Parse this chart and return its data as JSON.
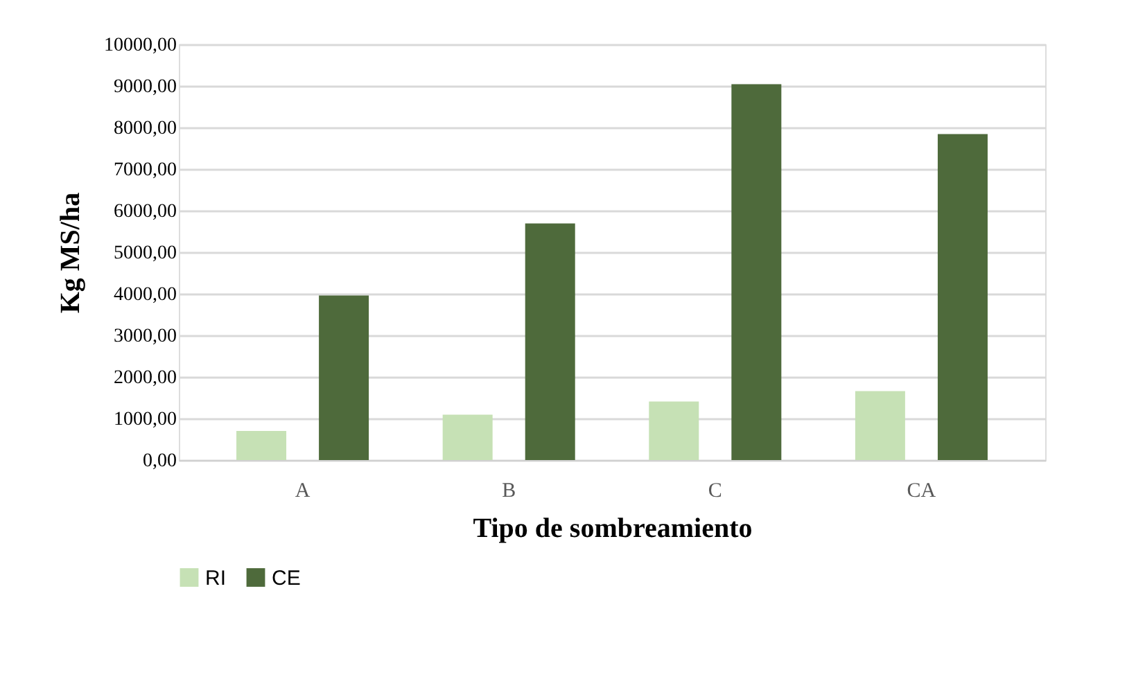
{
  "chart_data": {
    "type": "bar",
    "xlabel": "Tipo de sombreamiento",
    "ylabel": "Kg MS/ha",
    "categories": [
      "A",
      "B",
      "C",
      "CA"
    ],
    "series": [
      {
        "name": "RI",
        "color": "#c5e0b4",
        "values": [
          700,
          1090,
          1410,
          1660
        ]
      },
      {
        "name": "CE",
        "color": "#4a6737",
        "values": [
          3960,
          5690,
          9040,
          7840
        ]
      }
    ],
    "ylim": [
      0,
      10000
    ],
    "yticks": [
      {
        "value": 0,
        "label": "0,00"
      },
      {
        "value": 1000,
        "label": "1000,00"
      },
      {
        "value": 2000,
        "label": "2000,00"
      },
      {
        "value": 3000,
        "label": "3000,00"
      },
      {
        "value": 4000,
        "label": "4000,00"
      },
      {
        "value": 5000,
        "label": "5000,00"
      },
      {
        "value": 6000,
        "label": "6000,00"
      },
      {
        "value": 7000,
        "label": "7000,00"
      },
      {
        "value": 8000,
        "label": "8000,00"
      },
      {
        "value": 9000,
        "label": "9000,00"
      },
      {
        "value": 10000,
        "label": "10000,00"
      }
    ],
    "grid": "y",
    "legend": "bottom"
  }
}
